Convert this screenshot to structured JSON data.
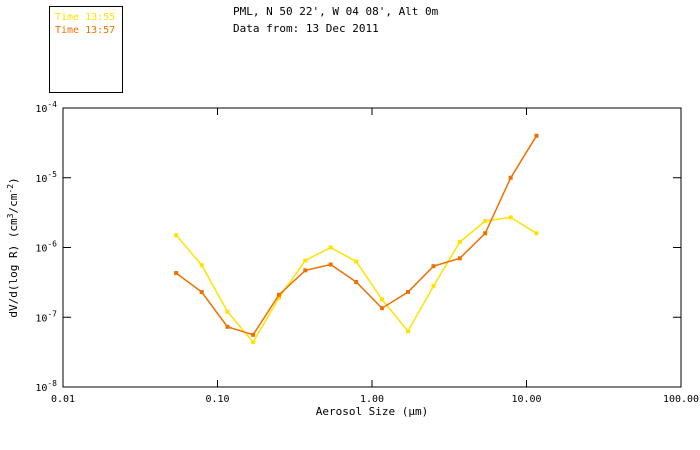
{
  "legend": {
    "entries": [
      {
        "label": "Time 13:55"
      },
      {
        "label": "Time 13:57"
      }
    ]
  },
  "chart_data": {
    "type": "line",
    "title": "PML, N 50 22', W 04 08', Alt 0m",
    "subtitle": "Data from: 13 Dec 2011",
    "xlabel": "Aerosol Size (μm)",
    "ylabel_parts": [
      "dV/d(log R) (cm",
      {
        "sup": "3"
      },
      "/cm",
      {
        "sup": "-2"
      },
      ")"
    ],
    "x_scale": "log",
    "y_scale": "log",
    "xlim": [
      0.01,
      100
    ],
    "ylim": [
      1e-08,
      0.0001
    ],
    "x_ticks": [
      {
        "value": 0.01,
        "label": "0.01"
      },
      {
        "value": 0.1,
        "label": "0.10"
      },
      {
        "value": 1,
        "label": "1.00"
      },
      {
        "value": 10,
        "label": "10.00"
      },
      {
        "value": 100,
        "label": "100.00"
      }
    ],
    "y_ticks": [
      {
        "base": "10",
        "exp": "-4"
      },
      {
        "base": "10",
        "exp": "-5"
      },
      {
        "base": "10",
        "exp": "-6"
      },
      {
        "base": "10",
        "exp": "-7"
      },
      {
        "base": "10",
        "exp": "-8"
      }
    ],
    "x": [
      0.054,
      0.079,
      0.116,
      0.17,
      0.25,
      0.37,
      0.54,
      0.79,
      1.16,
      1.71,
      2.5,
      3.7,
      5.4,
      7.9,
      11.6
    ],
    "series": [
      {
        "name": "Time 13:55",
        "color": "#ffe200",
        "values": [
          1.5e-06,
          5.6e-07,
          1.2e-07,
          4.4e-08,
          1.9e-07,
          6.5e-07,
          1e-06,
          6.3e-07,
          1.8e-07,
          6.3e-08,
          2.8e-07,
          1.2e-06,
          2.4e-06,
          2.7e-06,
          1.6e-06
        ]
      },
      {
        "name": "Time 13:57",
        "color": "#ee7000",
        "values": [
          4.3e-07,
          2.3e-07,
          7.3e-08,
          5.6e-08,
          2.1e-07,
          4.7e-07,
          5.7e-07,
          3.2e-07,
          1.35e-07,
          2.3e-07,
          5.4e-07,
          7e-07,
          1.6e-06,
          1e-05,
          4e-05
        ]
      }
    ],
    "legend_position": "top-left-outside",
    "grid": false,
    "frame": "box-with-inward-ticks"
  }
}
